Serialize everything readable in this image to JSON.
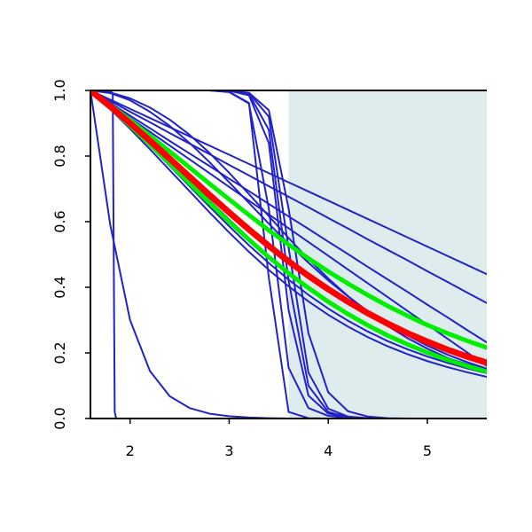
{
  "chart_data": {
    "type": "line",
    "title": "",
    "xlabel": "",
    "ylabel": "",
    "xlim": [
      1.6,
      5.6
    ],
    "ylim": [
      0,
      1
    ],
    "x_ticks": [
      2,
      3,
      4,
      5
    ],
    "y_ticks": [
      0.0,
      0.2,
      0.4,
      0.6,
      0.8,
      1.0
    ],
    "x_tick_labels": [
      "2",
      "3",
      "4",
      "5"
    ],
    "y_tick_labels": [
      "0.0",
      "0.2",
      "0.4",
      "0.6",
      "0.8",
      "1.0"
    ],
    "grid": false,
    "shaded_region": {
      "x_from": 3.6,
      "x_to": 5.6,
      "color": "#dfeced"
    },
    "colors": {
      "blue": "#2222cc",
      "red": "#ff0000",
      "green": "#00ee00",
      "axis": "#000000"
    },
    "x": [
      1.6,
      1.8,
      2.0,
      2.2,
      2.4,
      2.6,
      2.8,
      3.0,
      3.2,
      3.4,
      3.6,
      3.8,
      4.0,
      4.2,
      4.4,
      4.6,
      4.8,
      5.0,
      5.2,
      5.4,
      5.6
    ],
    "series": [
      {
        "color": "blue",
        "width": 2,
        "values": [
          1.0,
          0.972,
          0.944,
          0.916,
          0.888,
          0.86,
          0.832,
          0.804,
          0.776,
          0.748,
          0.72,
          0.692,
          0.664,
          0.636,
          0.608,
          0.58,
          0.552,
          0.524,
          0.496,
          0.468,
          0.44
        ]
      },
      {
        "color": "blue",
        "width": 2,
        "values": [
          1.0,
          0.968,
          0.935,
          0.903,
          0.87,
          0.838,
          0.806,
          0.773,
          0.741,
          0.708,
          0.676,
          0.644,
          0.611,
          0.579,
          0.546,
          0.514,
          0.482,
          0.449,
          0.417,
          0.384,
          0.352
        ]
      },
      {
        "color": "blue",
        "width": 2,
        "values": [
          1.0,
          0.962,
          0.923,
          0.885,
          0.846,
          0.808,
          0.77,
          0.731,
          0.693,
          0.654,
          0.616,
          0.578,
          0.539,
          0.501,
          0.462,
          0.424,
          0.386,
          0.347,
          0.309,
          0.27,
          0.232
        ]
      },
      {
        "color": "blue",
        "width": 2,
        "values": [
          1.0,
          0.958,
          0.916,
          0.874,
          0.832,
          0.79,
          0.748,
          0.706,
          0.664,
          0.622,
          0.58,
          0.538,
          0.496,
          0.454,
          0.412,
          0.37,
          0.328,
          0.286,
          0.244,
          0.202,
          0.16
        ]
      },
      {
        "color": "blue",
        "width": 2,
        "values": [
          1.0,
          0.949,
          0.896,
          0.84,
          0.783,
          0.724,
          0.665,
          0.607,
          0.55,
          0.496,
          0.446,
          0.399,
          0.357,
          0.319,
          0.285,
          0.255,
          0.228,
          0.205,
          0.184,
          0.166,
          0.15
        ]
      },
      {
        "color": "blue",
        "width": 2,
        "values": [
          1.0,
          0.946,
          0.89,
          0.831,
          0.77,
          0.708,
          0.646,
          0.586,
          0.528,
          0.474,
          0.423,
          0.377,
          0.335,
          0.298,
          0.265,
          0.236,
          0.211,
          0.189,
          0.17,
          0.153,
          0.138
        ]
      },
      {
        "color": "blue",
        "width": 2,
        "values": [
          1.0,
          0.943,
          0.883,
          0.821,
          0.757,
          0.693,
          0.629,
          0.567,
          0.508,
          0.453,
          0.403,
          0.357,
          0.316,
          0.28,
          0.248,
          0.22,
          0.196,
          0.175,
          0.157,
          0.141,
          0.127
        ]
      },
      {
        "color": "blue",
        "width": 2,
        "values": [
          1.0,
          0.992,
          0.97,
          0.935,
          0.892,
          0.84,
          0.782,
          0.72,
          0.657,
          0.594,
          0.533,
          0.475,
          0.421,
          0.372,
          0.327,
          0.288,
          0.253,
          0.222,
          0.195,
          0.172,
          0.152
        ]
      },
      {
        "color": "blue",
        "width": 2,
        "values": [
          1.0,
          0.994,
          0.976,
          0.948,
          0.911,
          0.865,
          0.81,
          0.749,
          0.684,
          0.617,
          0.55,
          0.486,
          0.427,
          0.373,
          0.325,
          0.282,
          0.245,
          0.213,
          0.185,
          0.161,
          0.141
        ]
      },
      {
        "color": "blue",
        "width": 2,
        "values": [
          1.0,
          1.0,
          1.0,
          1.0,
          1.0,
          1.0,
          1.0,
          0.995,
          0.96,
          0.64,
          0.155,
          0.032,
          0.008,
          0.002,
          0.0,
          0.0,
          0.0,
          0.0,
          0.0,
          0.0,
          0.0
        ]
      },
      {
        "color": "blue",
        "width": 2,
        "values": [
          1.0,
          1.0,
          1.0,
          1.0,
          1.0,
          1.0,
          1.0,
          0.999,
          0.985,
          0.84,
          0.33,
          0.07,
          0.015,
          0.003,
          0.001,
          0.0,
          0.0,
          0.0,
          0.0,
          0.0,
          0.0
        ]
      },
      {
        "color": "blue",
        "width": 2,
        "values": [
          1.0,
          1.0,
          1.0,
          1.0,
          1.0,
          1.0,
          1.0,
          0.999,
          0.99,
          0.88,
          0.42,
          0.1,
          0.02,
          0.004,
          0.001,
          0.0,
          0.0,
          0.0,
          0.0,
          0.0,
          0.0
        ]
      },
      {
        "color": "blue",
        "width": 2,
        "values": [
          1.0,
          1.0,
          1.0,
          1.0,
          1.0,
          1.0,
          1.0,
          0.999,
          0.992,
          0.92,
          0.52,
          0.14,
          0.03,
          0.006,
          0.001,
          0.0,
          0.0,
          0.0,
          0.0,
          0.0,
          0.0
        ]
      },
      {
        "color": "blue",
        "width": 2,
        "values": [
          1.0,
          1.0,
          1.0,
          1.0,
          1.0,
          1.0,
          1.0,
          0.999,
          0.993,
          0.94,
          0.64,
          0.26,
          0.08,
          0.022,
          0.006,
          0.001,
          0.0,
          0.0,
          0.0,
          0.0,
          0.0
        ]
      },
      {
        "color": "blue",
        "width": 2,
        "values": [
          1.0,
          1.0,
          1.0,
          1.0,
          1.0,
          1.0,
          1.0,
          0.996,
          0.962,
          0.43,
          0.02,
          0.001,
          0.0,
          0.0,
          0.0,
          0.0,
          0.0,
          0.0,
          0.0,
          0.0,
          0.0
        ]
      },
      {
        "color": "blue",
        "width": 2,
        "values": [
          1.0,
          0.59,
          0.3,
          0.145,
          0.068,
          0.032,
          0.015,
          0.007,
          0.003,
          0.001,
          0.0,
          0.0,
          0.0,
          0.0,
          0.0,
          0.0,
          0.0,
          0.0,
          0.0,
          0.0,
          0.0
        ]
      },
      {
        "color": "blue",
        "width": 2,
        "points": [
          [
            1.6,
            1.0
          ],
          [
            1.8,
            1.0
          ],
          [
            1.825,
            0.99
          ],
          [
            1.835,
            0.5
          ],
          [
            1.845,
            0.02
          ],
          [
            1.86,
            0.0
          ],
          [
            5.6,
            0.0
          ]
        ]
      },
      {
        "color": "green",
        "width": 5,
        "values": [
          1.0,
          0.955,
          0.91,
          0.862,
          0.814,
          0.765,
          0.716,
          0.668,
          0.62,
          0.574,
          0.53,
          0.488,
          0.448,
          0.411,
          0.376,
          0.343,
          0.313,
          0.285,
          0.26,
          0.237,
          0.216
        ]
      },
      {
        "color": "green",
        "width": 5,
        "values": [
          1.0,
          0.948,
          0.893,
          0.836,
          0.777,
          0.717,
          0.658,
          0.6,
          0.545,
          0.492,
          0.443,
          0.398,
          0.356,
          0.318,
          0.284,
          0.253,
          0.226,
          0.201,
          0.179,
          0.16,
          0.143
        ]
      },
      {
        "color": "red",
        "width": 7,
        "values": [
          1.0,
          0.951,
          0.9,
          0.847,
          0.792,
          0.737,
          0.682,
          0.628,
          0.576,
          0.526,
          0.479,
          0.435,
          0.394,
          0.356,
          0.321,
          0.289,
          0.26,
          0.234,
          0.21,
          0.189,
          0.17
        ]
      }
    ]
  }
}
